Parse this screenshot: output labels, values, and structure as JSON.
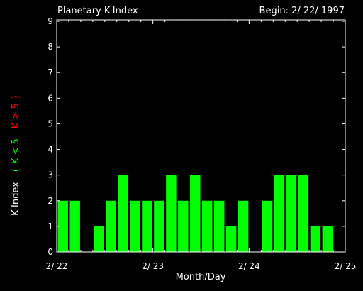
{
  "chart_data": {
    "type": "bar",
    "title": "Planetary K-Index",
    "subtitle": "Begin: 2/ 22/ 1997",
    "xlabel": "Month/Day",
    "ylabel": "K-Index",
    "legend": {
      "open": "(",
      "low": "K < 5",
      "high": "K > 5",
      "close": ")"
    },
    "yticks": [
      "0",
      "1",
      "2",
      "3",
      "4",
      "5",
      "6",
      "7",
      "8",
      "9"
    ],
    "xticks": [
      "2/ 22",
      "2/ 23",
      "2/ 24",
      "2/ 25"
    ],
    "ylim": [
      0,
      9
    ],
    "bars_per_day": 8,
    "values": [
      2,
      2,
      0,
      1,
      2,
      3,
      2,
      2,
      2,
      3,
      2,
      3,
      2,
      2,
      1,
      2,
      0,
      2,
      3,
      3,
      3,
      1,
      1
    ],
    "colors": {
      "background": "#000000",
      "axes": "#ffffff",
      "low": "#00ff00",
      "high": "#ff0000"
    }
  }
}
